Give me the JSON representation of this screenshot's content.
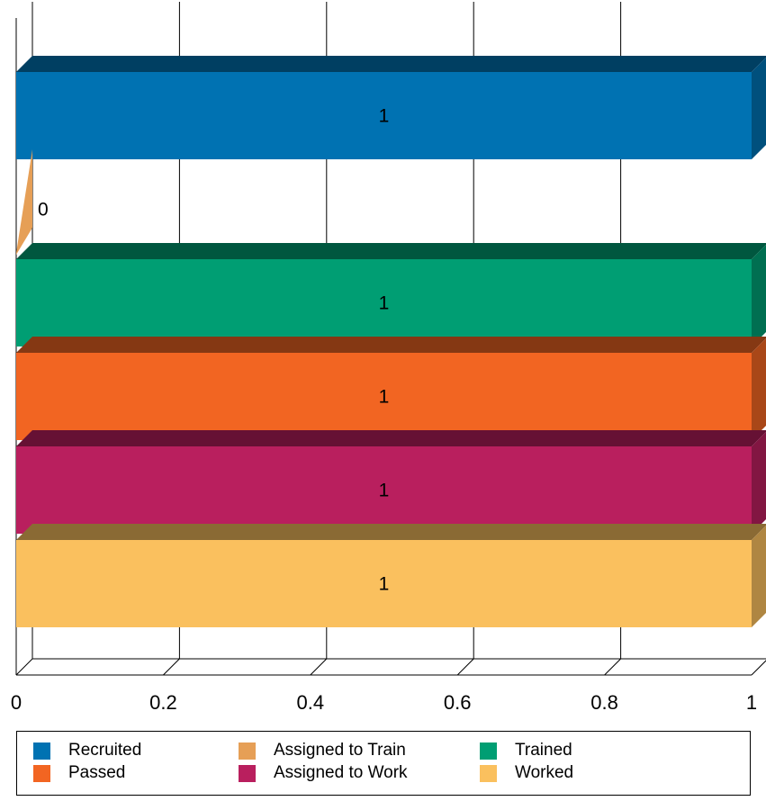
{
  "chart_data": {
    "type": "bar",
    "orientation": "horizontal",
    "style": "3d",
    "categories": [
      "Recruited",
      "Assigned to Train",
      "Trained",
      "Passed",
      "Assigned to Work",
      "Worked"
    ],
    "values": [
      1,
      0,
      1,
      1,
      1,
      1
    ],
    "data_labels": [
      "1",
      "0",
      "1",
      "1",
      "1",
      "1"
    ],
    "colors": [
      "#0072b2",
      "#e69f56",
      "#009e73",
      "#f26522",
      "#b91f5e",
      "#fac05e"
    ],
    "xlim": [
      0,
      1
    ],
    "x_ticks": [
      "0",
      "0.2",
      "0.4",
      "0.6",
      "0.8",
      "1"
    ],
    "grid": "vertical",
    "legend_position": "bottom",
    "title": "",
    "xlabel": "",
    "ylabel": ""
  },
  "legend": [
    {
      "label": "Recruited",
      "color": "#0072b2"
    },
    {
      "label": "Assigned to Train",
      "color": "#e69f56"
    },
    {
      "label": "Trained",
      "color": "#009e73"
    },
    {
      "label": "Passed",
      "color": "#f26522"
    },
    {
      "label": "Assigned to Work",
      "color": "#b91f5e"
    },
    {
      "label": "Worked",
      "color": "#fac05e"
    }
  ]
}
